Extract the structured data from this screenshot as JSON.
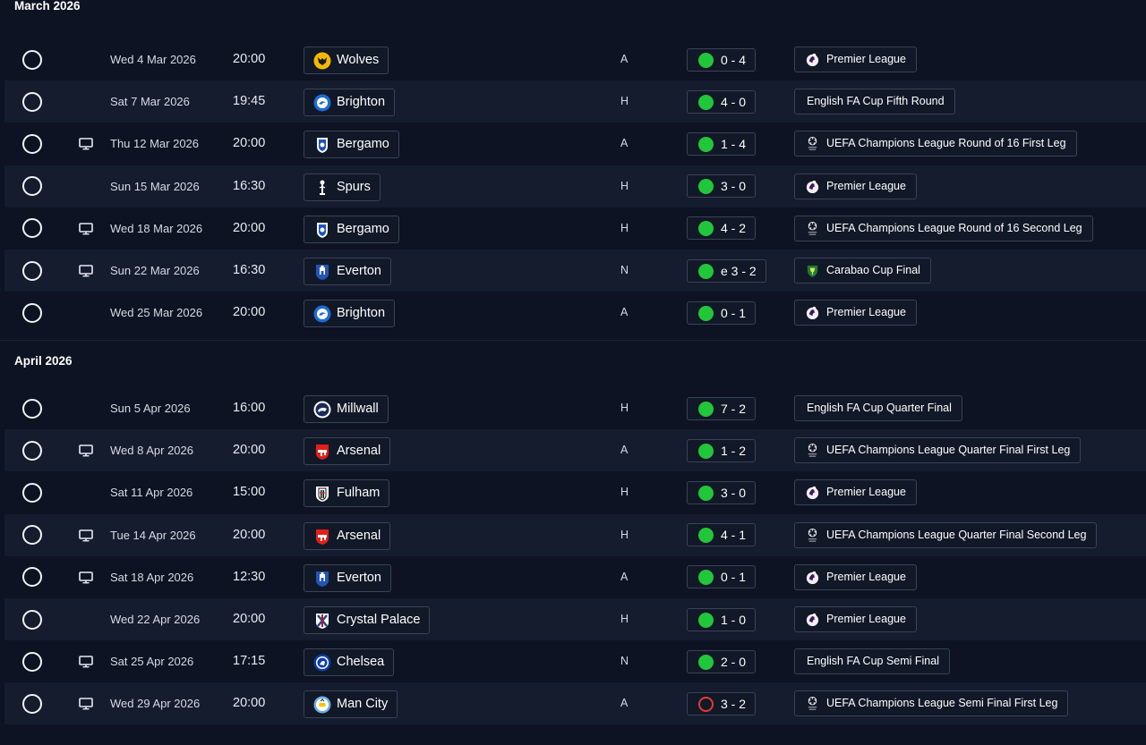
{
  "colors": {
    "win": "#22c63a",
    "loss": "#e53935",
    "background": "#0d1322",
    "row_alt": "#141c2e"
  },
  "months": [
    {
      "title": "March 2026",
      "fixtures": [
        {
          "date": "Wed 4 Mar 2026",
          "time": "20:00",
          "tv": false,
          "team": "Wolves",
          "crest": "wolves-crest",
          "venue": "A",
          "outcome": "win",
          "score": "0 - 4",
          "competition": "Premier League",
          "comp_icon": "premier-league-icon"
        },
        {
          "date": "Sat 7 Mar 2026",
          "time": "19:45",
          "tv": false,
          "team": "Brighton",
          "crest": "brighton-crest",
          "venue": "H",
          "outcome": "win",
          "score": "4 - 0",
          "competition": "English FA Cup Fifth Round",
          "comp_icon": ""
        },
        {
          "date": "Thu 12 Mar 2026",
          "time": "20:00",
          "tv": true,
          "team": "Bergamo",
          "crest": "bergamo-crest",
          "venue": "A",
          "outcome": "win",
          "score": "1 - 4",
          "competition": "UEFA Champions League Round of 16  First Leg",
          "comp_icon": "champions-league-icon"
        },
        {
          "date": "Sun 15 Mar 2026",
          "time": "16:30",
          "tv": false,
          "team": "Spurs",
          "crest": "spurs-crest",
          "venue": "H",
          "outcome": "win",
          "score": "3 - 0",
          "competition": "Premier League",
          "comp_icon": "premier-league-icon"
        },
        {
          "date": "Wed 18 Mar 2026",
          "time": "20:00",
          "tv": true,
          "team": "Bergamo",
          "crest": "bergamo-crest",
          "venue": "H",
          "outcome": "win",
          "score": "4 - 2",
          "competition": "UEFA Champions League Round of 16  Second Leg",
          "comp_icon": "champions-league-icon"
        },
        {
          "date": "Sun 22 Mar 2026",
          "time": "16:30",
          "tv": true,
          "team": "Everton",
          "crest": "everton-crest",
          "venue": "N",
          "outcome": "win",
          "score": "e 3 - 2",
          "competition": "Carabao Cup Final",
          "comp_icon": "carabao-cup-icon"
        },
        {
          "date": "Wed 25 Mar 2026",
          "time": "20:00",
          "tv": false,
          "team": "Brighton",
          "crest": "brighton-crest",
          "venue": "A",
          "outcome": "win",
          "score": "0 - 1",
          "competition": "Premier League",
          "comp_icon": "premier-league-icon"
        }
      ]
    },
    {
      "title": "April 2026",
      "fixtures": [
        {
          "date": "Sun 5 Apr 2026",
          "time": "16:00",
          "tv": false,
          "team": "Millwall",
          "crest": "millwall-crest",
          "venue": "H",
          "outcome": "win",
          "score": "7 - 2",
          "competition": "English FA Cup Quarter Final",
          "comp_icon": ""
        },
        {
          "date": "Wed 8 Apr 2026",
          "time": "20:00",
          "tv": true,
          "team": "Arsenal",
          "crest": "arsenal-crest",
          "venue": "A",
          "outcome": "win",
          "score": "1 - 2",
          "competition": "UEFA Champions League Quarter Final First Leg",
          "comp_icon": "champions-league-icon"
        },
        {
          "date": "Sat 11 Apr 2026",
          "time": "15:00",
          "tv": false,
          "team": "Fulham",
          "crest": "fulham-crest",
          "venue": "H",
          "outcome": "win",
          "score": "3 - 0",
          "competition": "Premier League",
          "comp_icon": "premier-league-icon"
        },
        {
          "date": "Tue 14 Apr 2026",
          "time": "20:00",
          "tv": true,
          "team": "Arsenal",
          "crest": "arsenal-crest",
          "venue": "H",
          "outcome": "win",
          "score": "4 - 1",
          "competition": "UEFA Champions League Quarter Final Second Leg",
          "comp_icon": "champions-league-icon"
        },
        {
          "date": "Sat 18 Apr 2026",
          "time": "12:30",
          "tv": true,
          "team": "Everton",
          "crest": "everton-crest",
          "venue": "A",
          "outcome": "win",
          "score": "0 - 1",
          "competition": "Premier League",
          "comp_icon": "premier-league-icon"
        },
        {
          "date": "Wed 22 Apr 2026",
          "time": "20:00",
          "tv": false,
          "team": "Crystal Palace",
          "crest": "crystal-palace-crest",
          "venue": "H",
          "outcome": "win",
          "score": "1 - 0",
          "competition": "Premier League",
          "comp_icon": "premier-league-icon"
        },
        {
          "date": "Sat 25 Apr 2026",
          "time": "17:15",
          "tv": true,
          "team": "Chelsea",
          "crest": "chelsea-crest",
          "venue": "N",
          "outcome": "win",
          "score": "2 - 0",
          "competition": "English FA Cup Semi Final",
          "comp_icon": ""
        },
        {
          "date": "Wed 29 Apr 2026",
          "time": "20:00",
          "tv": true,
          "team": "Man City",
          "crest": "man-city-crest",
          "venue": "A",
          "outcome": "loss",
          "score": "3 - 2",
          "competition": "UEFA Champions League Semi Final First Leg",
          "comp_icon": "champions-league-icon"
        }
      ]
    }
  ]
}
